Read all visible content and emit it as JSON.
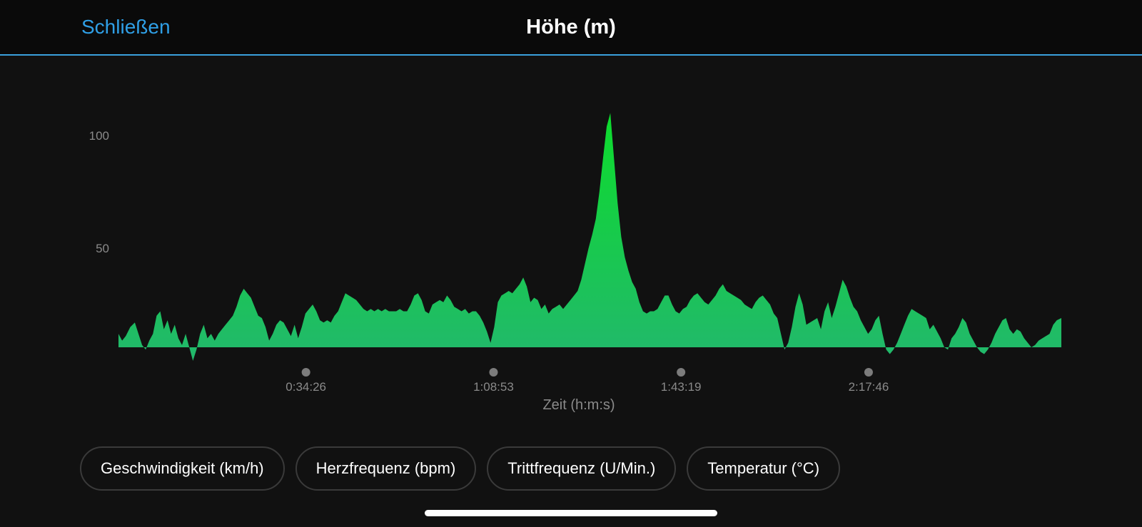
{
  "header": {
    "close_label": "Schließen",
    "title": "Höhe (m)",
    "accent_color": "#2f9fe6"
  },
  "tabs": [
    {
      "label": "Geschwindigkeit (km/h)"
    },
    {
      "label": "Herzfrequenz (bpm)"
    },
    {
      "label": "Trittfrequenz (U/Min.)"
    },
    {
      "label": "Temperatur (°C)"
    }
  ],
  "chart_data": {
    "type": "area",
    "title": "Höhe (m)",
    "xlabel": "Zeit (h:m:s)",
    "ylabel": "",
    "xlim_seconds": [
      0,
      10390
    ],
    "ylim": [
      0,
      110
    ],
    "y_ticks": [
      {
        "value": 50,
        "label": "50"
      },
      {
        "value": 100,
        "label": "100"
      }
    ],
    "x_ticks": [
      {
        "value": 2066,
        "label": "0:34:26"
      },
      {
        "value": 4133,
        "label": "1:08:53"
      },
      {
        "value": 6199,
        "label": "1:43:19"
      },
      {
        "value": 8266,
        "label": "2:17:46"
      }
    ],
    "grid": false,
    "gradient_colors": {
      "peak": "#0ddc2c",
      "base": "#22b86c"
    },
    "points": [
      [
        0,
        12
      ],
      [
        40,
        9
      ],
      [
        80,
        11
      ],
      [
        130,
        15
      ],
      [
        180,
        17
      ],
      [
        220,
        12
      ],
      [
        260,
        7
      ],
      [
        300,
        5
      ],
      [
        340,
        9
      ],
      [
        380,
        12
      ],
      [
        420,
        20
      ],
      [
        460,
        22
      ],
      [
        500,
        14
      ],
      [
        540,
        18
      ],
      [
        580,
        12
      ],
      [
        620,
        16
      ],
      [
        660,
        10
      ],
      [
        700,
        7
      ],
      [
        740,
        12
      ],
      [
        780,
        6
      ],
      [
        820,
        0
      ],
      [
        860,
        5
      ],
      [
        900,
        12
      ],
      [
        940,
        16
      ],
      [
        980,
        10
      ],
      [
        1020,
        12
      ],
      [
        1060,
        9
      ],
      [
        1100,
        12
      ],
      [
        1140,
        14
      ],
      [
        1180,
        16
      ],
      [
        1220,
        18
      ],
      [
        1260,
        20
      ],
      [
        1300,
        24
      ],
      [
        1340,
        29
      ],
      [
        1380,
        32
      ],
      [
        1420,
        30
      ],
      [
        1460,
        28
      ],
      [
        1500,
        24
      ],
      [
        1540,
        20
      ],
      [
        1580,
        19
      ],
      [
        1620,
        15
      ],
      [
        1660,
        9
      ],
      [
        1700,
        12
      ],
      [
        1740,
        16
      ],
      [
        1780,
        18
      ],
      [
        1820,
        17
      ],
      [
        1860,
        14
      ],
      [
        1900,
        11
      ],
      [
        1940,
        16
      ],
      [
        1980,
        10
      ],
      [
        2020,
        15
      ],
      [
        2060,
        21
      ],
      [
        2100,
        23
      ],
      [
        2140,
        25
      ],
      [
        2180,
        22
      ],
      [
        2220,
        18
      ],
      [
        2260,
        17
      ],
      [
        2300,
        18
      ],
      [
        2340,
        17
      ],
      [
        2380,
        20
      ],
      [
        2420,
        22
      ],
      [
        2460,
        26
      ],
      [
        2500,
        30
      ],
      [
        2540,
        29
      ],
      [
        2580,
        28
      ],
      [
        2620,
        27
      ],
      [
        2660,
        25
      ],
      [
        2700,
        23
      ],
      [
        2740,
        22
      ],
      [
        2780,
        23
      ],
      [
        2820,
        22
      ],
      [
        2860,
        23
      ],
      [
        2900,
        22
      ],
      [
        2940,
        23
      ],
      [
        2980,
        22
      ],
      [
        3020,
        22
      ],
      [
        3060,
        22
      ],
      [
        3100,
        23
      ],
      [
        3140,
        22
      ],
      [
        3180,
        22
      ],
      [
        3220,
        25
      ],
      [
        3260,
        29
      ],
      [
        3300,
        30
      ],
      [
        3340,
        27
      ],
      [
        3380,
        22
      ],
      [
        3420,
        21
      ],
      [
        3460,
        25
      ],
      [
        3500,
        26
      ],
      [
        3540,
        27
      ],
      [
        3580,
        26
      ],
      [
        3620,
        29
      ],
      [
        3660,
        27
      ],
      [
        3700,
        24
      ],
      [
        3740,
        23
      ],
      [
        3780,
        22
      ],
      [
        3820,
        23
      ],
      [
        3860,
        21
      ],
      [
        3900,
        22
      ],
      [
        3940,
        22
      ],
      [
        3980,
        20
      ],
      [
        4020,
        17
      ],
      [
        4060,
        13
      ],
      [
        4100,
        8
      ],
      [
        4140,
        15
      ],
      [
        4180,
        26
      ],
      [
        4220,
        29
      ],
      [
        4260,
        30
      ],
      [
        4300,
        31
      ],
      [
        4340,
        30
      ],
      [
        4380,
        32
      ],
      [
        4420,
        34
      ],
      [
        4460,
        37
      ],
      [
        4500,
        33
      ],
      [
        4540,
        26
      ],
      [
        4580,
        28
      ],
      [
        4620,
        27
      ],
      [
        4660,
        23
      ],
      [
        4700,
        25
      ],
      [
        4740,
        21
      ],
      [
        4780,
        23
      ],
      [
        4820,
        24
      ],
      [
        4860,
        25
      ],
      [
        4900,
        23
      ],
      [
        4940,
        25
      ],
      [
        4980,
        27
      ],
      [
        5020,
        29
      ],
      [
        5060,
        31
      ],
      [
        5100,
        36
      ],
      [
        5140,
        43
      ],
      [
        5180,
        50
      ],
      [
        5220,
        56
      ],
      [
        5260,
        63
      ],
      [
        5300,
        75
      ],
      [
        5340,
        90
      ],
      [
        5380,
        104
      ],
      [
        5420,
        110
      ],
      [
        5460,
        90
      ],
      [
        5500,
        70
      ],
      [
        5540,
        55
      ],
      [
        5580,
        46
      ],
      [
        5620,
        40
      ],
      [
        5660,
        35
      ],
      [
        5700,
        32
      ],
      [
        5740,
        26
      ],
      [
        5780,
        22
      ],
      [
        5820,
        21
      ],
      [
        5860,
        22
      ],
      [
        5900,
        22
      ],
      [
        5940,
        23
      ],
      [
        5980,
        26
      ],
      [
        6020,
        29
      ],
      [
        6060,
        29
      ],
      [
        6100,
        25
      ],
      [
        6140,
        22
      ],
      [
        6180,
        21
      ],
      [
        6220,
        23
      ],
      [
        6260,
        24
      ],
      [
        6300,
        27
      ],
      [
        6340,
        29
      ],
      [
        6380,
        30
      ],
      [
        6420,
        28
      ],
      [
        6460,
        26
      ],
      [
        6500,
        25
      ],
      [
        6540,
        27
      ],
      [
        6580,
        29
      ],
      [
        6620,
        32
      ],
      [
        6660,
        34
      ],
      [
        6700,
        31
      ],
      [
        6740,
        30
      ],
      [
        6780,
        29
      ],
      [
        6820,
        28
      ],
      [
        6860,
        27
      ],
      [
        6900,
        25
      ],
      [
        6940,
        24
      ],
      [
        6980,
        23
      ],
      [
        7020,
        26
      ],
      [
        7060,
        28
      ],
      [
        7100,
        29
      ],
      [
        7140,
        27
      ],
      [
        7180,
        25
      ],
      [
        7220,
        21
      ],
      [
        7260,
        19
      ],
      [
        7300,
        12
      ],
      [
        7340,
        5
      ],
      [
        7380,
        8
      ],
      [
        7420,
        15
      ],
      [
        7460,
        24
      ],
      [
        7500,
        30
      ],
      [
        7540,
        25
      ],
      [
        7580,
        16
      ],
      [
        7620,
        17
      ],
      [
        7660,
        18
      ],
      [
        7700,
        19
      ],
      [
        7740,
        14
      ],
      [
        7780,
        22
      ],
      [
        7820,
        26
      ],
      [
        7860,
        19
      ],
      [
        7900,
        24
      ],
      [
        7940,
        30
      ],
      [
        7980,
        36
      ],
      [
        8020,
        33
      ],
      [
        8060,
        28
      ],
      [
        8100,
        24
      ],
      [
        8140,
        22
      ],
      [
        8180,
        18
      ],
      [
        8220,
        15
      ],
      [
        8260,
        12
      ],
      [
        8300,
        14
      ],
      [
        8340,
        18
      ],
      [
        8380,
        20
      ],
      [
        8420,
        12
      ],
      [
        8460,
        5
      ],
      [
        8500,
        3
      ],
      [
        8540,
        5
      ],
      [
        8580,
        8
      ],
      [
        8620,
        12
      ],
      [
        8660,
        16
      ],
      [
        8700,
        20
      ],
      [
        8740,
        23
      ],
      [
        8780,
        22
      ],
      [
        8820,
        21
      ],
      [
        8860,
        20
      ],
      [
        8900,
        19
      ],
      [
        8940,
        14
      ],
      [
        8980,
        16
      ],
      [
        9020,
        13
      ],
      [
        9060,
        10
      ],
      [
        9100,
        6
      ],
      [
        9140,
        5
      ],
      [
        9180,
        10
      ],
      [
        9220,
        12
      ],
      [
        9260,
        15
      ],
      [
        9300,
        19
      ],
      [
        9340,
        17
      ],
      [
        9380,
        12
      ],
      [
        9420,
        9
      ],
      [
        9460,
        6
      ],
      [
        9500,
        4
      ],
      [
        9540,
        3
      ],
      [
        9580,
        5
      ],
      [
        9620,
        8
      ],
      [
        9660,
        12
      ],
      [
        9700,
        15
      ],
      [
        9740,
        18
      ],
      [
        9780,
        19
      ],
      [
        9820,
        14
      ],
      [
        9860,
        12
      ],
      [
        9900,
        14
      ],
      [
        9940,
        13
      ],
      [
        9980,
        10
      ],
      [
        10020,
        8
      ],
      [
        10060,
        6
      ],
      [
        10100,
        7
      ],
      [
        10140,
        9
      ],
      [
        10180,
        10
      ],
      [
        10220,
        11
      ],
      [
        10260,
        12
      ],
      [
        10300,
        16
      ],
      [
        10340,
        18
      ],
      [
        10390,
        19
      ]
    ]
  }
}
